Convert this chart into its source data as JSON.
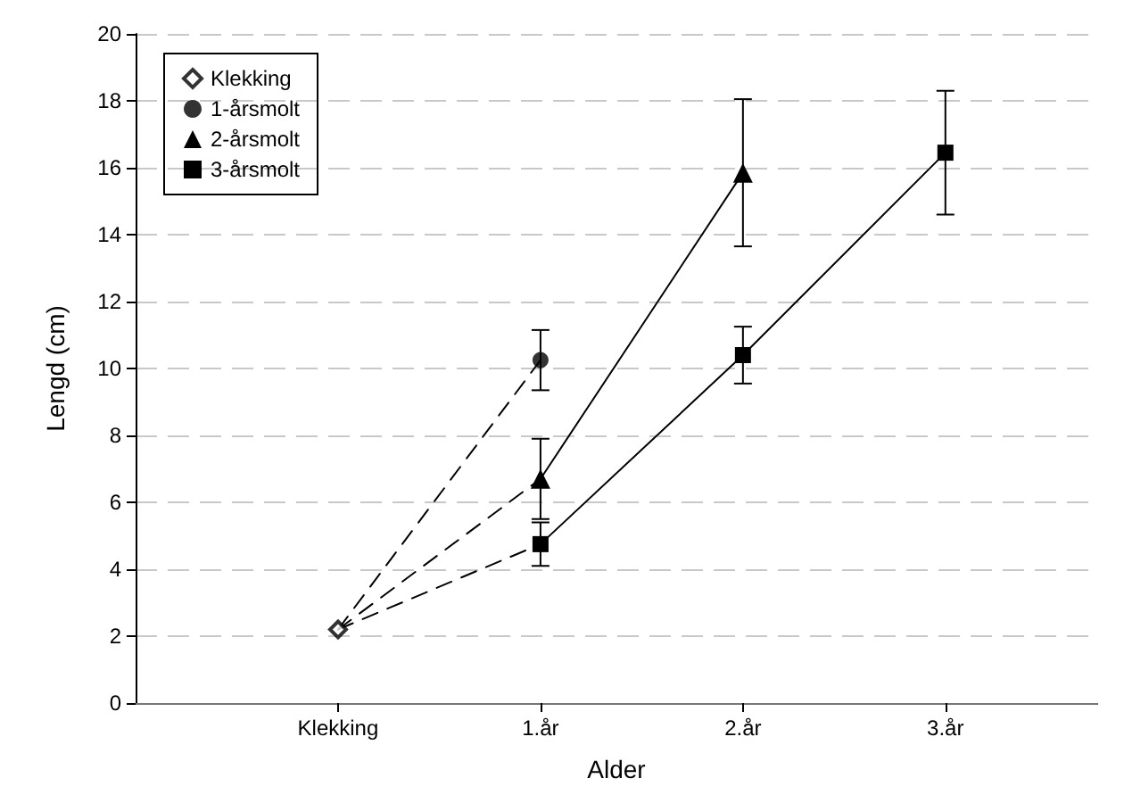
{
  "chart_data": {
    "type": "line",
    "xlabel": "Alder",
    "ylabel": "Lengd (cm)",
    "xlim": [
      -1,
      3.75
    ],
    "xticks": [
      {
        "value": 0,
        "label": "Klekking"
      },
      {
        "value": 1,
        "label": "1.år"
      },
      {
        "value": 2,
        "label": "2.år"
      },
      {
        "value": 3,
        "label": "3.år"
      }
    ],
    "ylim": [
      0,
      20
    ],
    "yticks": [
      0,
      2,
      4,
      6,
      8,
      10,
      12,
      14,
      16,
      18,
      20
    ],
    "grid": "y",
    "legend": "top left",
    "series": [
      {
        "name": "Klekking",
        "type": "scatter",
        "marker": "diamond",
        "color": "#000000",
        "x": [
          0
        ],
        "values": [
          2.2
        ]
      },
      {
        "name": "1-årsmolt",
        "type": "scatter",
        "marker": "circle",
        "color": "#000000",
        "x": [
          1
        ],
        "values": [
          10.25
        ],
        "errors": [
          0.9
        ]
      },
      {
        "marker": "none",
        "line_style": "dashed",
        "color": "#000000",
        "x": [
          0,
          1
        ],
        "values": [
          2.2,
          10.25
        ]
      },
      {
        "name": "2-årsmolt",
        "marker": "triangle",
        "line_style": "solid",
        "color": "#000000",
        "x": [
          1,
          2
        ],
        "values": [
          6.7,
          15.85
        ],
        "errors": [
          1.2,
          2.2
        ]
      },
      {
        "name": "3-årsmolt",
        "marker": "square",
        "line_style": "solid",
        "color": "#000000",
        "x": [
          1,
          2,
          3
        ],
        "values": [
          4.75,
          10.4,
          16.45
        ],
        "errors": [
          0.65,
          0.85,
          1.85
        ]
      },
      {
        "marker": "none",
        "line_style": "dashed",
        "color": "#000000",
        "x": [
          0,
          1
        ],
        "values": [
          2.2,
          6.7
        ]
      },
      {
        "marker": "none",
        "line_style": "dashed",
        "color": "#000000",
        "x": [
          0,
          1
        ],
        "values": [
          2.2,
          4.75
        ]
      }
    ]
  }
}
